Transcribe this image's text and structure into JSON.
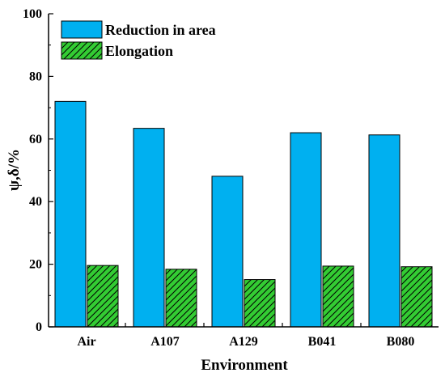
{
  "chart_data": {
    "type": "bar",
    "xlabel": "Environment",
    "ylabel": "ψ,δ/%",
    "ylim": [
      0,
      100
    ],
    "yticks": [
      0,
      20,
      40,
      60,
      80,
      100
    ],
    "categories": [
      "Air",
      "A107",
      "A129",
      "B041",
      "B080"
    ],
    "series": [
      {
        "name": "Reduction in area",
        "values": [
          72.0,
          63.4,
          48.1,
          62.0,
          61.3
        ],
        "color": "#00B0F0",
        "pattern": "solid"
      },
      {
        "name": "Elongation",
        "values": [
          19.6,
          18.4,
          15.1,
          19.4,
          19.2
        ],
        "color": "#33CC33",
        "pattern": "hatch"
      }
    ],
    "grid": false,
    "legend_position": "top-left"
  }
}
